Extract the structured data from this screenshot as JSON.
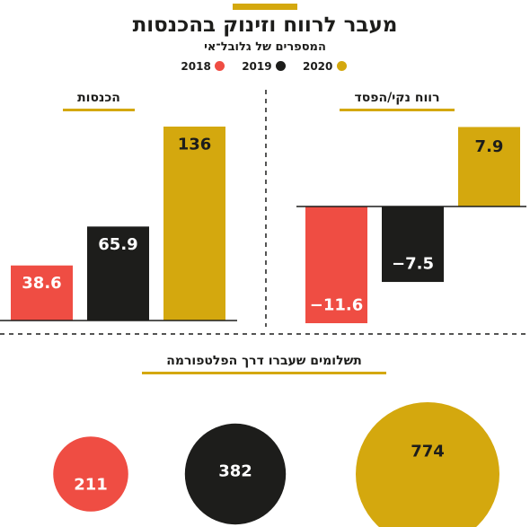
{
  "header": {
    "title": "מעבר לרווח וזינוק בהכנסות",
    "subtitle": "המספרים של גלובל־אי"
  },
  "legend": [
    {
      "label": "2020",
      "color": "#d4a80e"
    },
    {
      "label": "2019",
      "color": "#1d1d1b"
    },
    {
      "label": "2018",
      "color": "#ef4d43"
    }
  ],
  "chart_data": [
    {
      "type": "bar",
      "title": "הכנסות",
      "categories": [
        "2018",
        "2019",
        "2020"
      ],
      "values": [
        38.6,
        65.9,
        136
      ],
      "value_labels": [
        "38.6",
        "65.9",
        "136"
      ],
      "colors": [
        "#ef4d43",
        "#1d1d1b",
        "#d4a80e"
      ]
    },
    {
      "type": "bar",
      "title": "רווח נקי/הפסד",
      "categories": [
        "2018",
        "2019",
        "2020"
      ],
      "values": [
        -11.6,
        -7.5,
        7.9
      ],
      "value_labels": [
        "−11.6",
        "−7.5",
        "7.9"
      ],
      "colors": [
        "#ef4d43",
        "#1d1d1b",
        "#d4a80e"
      ]
    },
    {
      "type": "bubble",
      "title": "תשלומים שעברו דרך הפלטפורמה",
      "categories": [
        "2018",
        "2019",
        "2020"
      ],
      "values": [
        211,
        382,
        774
      ],
      "value_labels": [
        "211",
        "382",
        "774"
      ],
      "colors": [
        "#ef4d43",
        "#1d1d1b",
        "#d4a80e"
      ]
    }
  ]
}
